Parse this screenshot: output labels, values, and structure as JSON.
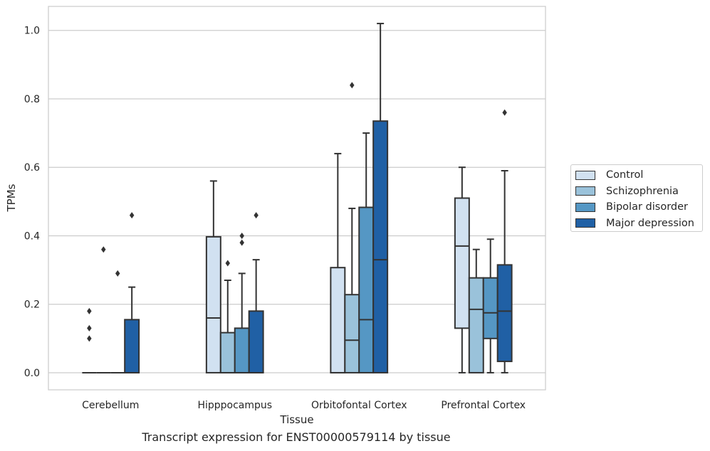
{
  "chart_data": {
    "type": "box",
    "title": "",
    "caption": "Transcript expression for ENST00000579114 by tissue",
    "xlabel": "Tissue",
    "ylabel": "TPMs",
    "ylim": [
      -0.05,
      1.07
    ],
    "yticks": [
      "0.0",
      "0.2",
      "0.4",
      "0.6",
      "0.8",
      "1.0"
    ],
    "grid": "horizontal",
    "legend_position": "right-outside",
    "categories": [
      "Cerebellum",
      "Hipppocampus",
      "Orbitofontal Cortex",
      "Prefrontal Cortex"
    ],
    "series": [
      {
        "name": "Control",
        "color": "#d1e1f1",
        "boxes": [
          {
            "whislo": 0.0,
            "q1": 0.0,
            "med": 0.0,
            "q3": 0.0,
            "whishi": 0.0,
            "fliers": [
              0.1,
              0.13,
              0.18
            ]
          },
          {
            "whislo": 0.0,
            "q1": 0.0,
            "med": 0.16,
            "q3": 0.397,
            "whishi": 0.56,
            "fliers": []
          },
          {
            "whislo": 0.0,
            "q1": 0.0,
            "med": 0.0,
            "q3": 0.307,
            "whishi": 0.64,
            "fliers": []
          },
          {
            "whislo": 0.0,
            "q1": 0.13,
            "med": 0.37,
            "q3": 0.51,
            "whishi": 0.6,
            "fliers": []
          }
        ]
      },
      {
        "name": "Schizophrenia",
        "color": "#9ac2da",
        "boxes": [
          {
            "whislo": 0.0,
            "q1": 0.0,
            "med": 0.0,
            "q3": 0.0,
            "whishi": 0.0,
            "fliers": [
              0.36
            ]
          },
          {
            "whislo": 0.0,
            "q1": 0.0,
            "med": 0.0,
            "q3": 0.117,
            "whishi": 0.27,
            "fliers": [
              0.32
            ]
          },
          {
            "whislo": 0.0,
            "q1": 0.0,
            "med": 0.095,
            "q3": 0.228,
            "whishi": 0.48,
            "fliers": [
              0.84
            ]
          },
          {
            "whislo": 0.0,
            "q1": 0.0,
            "med": 0.185,
            "q3": 0.277,
            "whishi": 0.36,
            "fliers": []
          }
        ]
      },
      {
        "name": "Bipolar disorder",
        "color": "#5597c4",
        "boxes": [
          {
            "whislo": 0.0,
            "q1": 0.0,
            "med": 0.0,
            "q3": 0.0,
            "whishi": 0.0,
            "fliers": [
              0.29
            ]
          },
          {
            "whislo": 0.0,
            "q1": 0.0,
            "med": 0.0,
            "q3": 0.13,
            "whishi": 0.29,
            "fliers": [
              0.38,
              0.4
            ]
          },
          {
            "whislo": 0.0,
            "q1": 0.0,
            "med": 0.155,
            "q3": 0.483,
            "whishi": 0.7,
            "fliers": []
          },
          {
            "whislo": 0.0,
            "q1": 0.1,
            "med": 0.175,
            "q3": 0.277,
            "whishi": 0.39,
            "fliers": []
          }
        ]
      },
      {
        "name": "Major depression",
        "color": "#2060a5",
        "boxes": [
          {
            "whislo": 0.0,
            "q1": 0.0,
            "med": 0.0,
            "q3": 0.155,
            "whishi": 0.25,
            "fliers": [
              0.46
            ]
          },
          {
            "whislo": 0.0,
            "q1": 0.0,
            "med": 0.0,
            "q3": 0.18,
            "whishi": 0.33,
            "fliers": [
              0.46
            ]
          },
          {
            "whislo": 0.0,
            "q1": 0.0,
            "med": 0.33,
            "q3": 0.735,
            "whishi": 1.02,
            "fliers": []
          },
          {
            "whislo": 0.0,
            "q1": 0.033,
            "med": 0.18,
            "q3": 0.315,
            "whishi": 0.59,
            "fliers": [
              0.76
            ]
          }
        ]
      }
    ]
  }
}
